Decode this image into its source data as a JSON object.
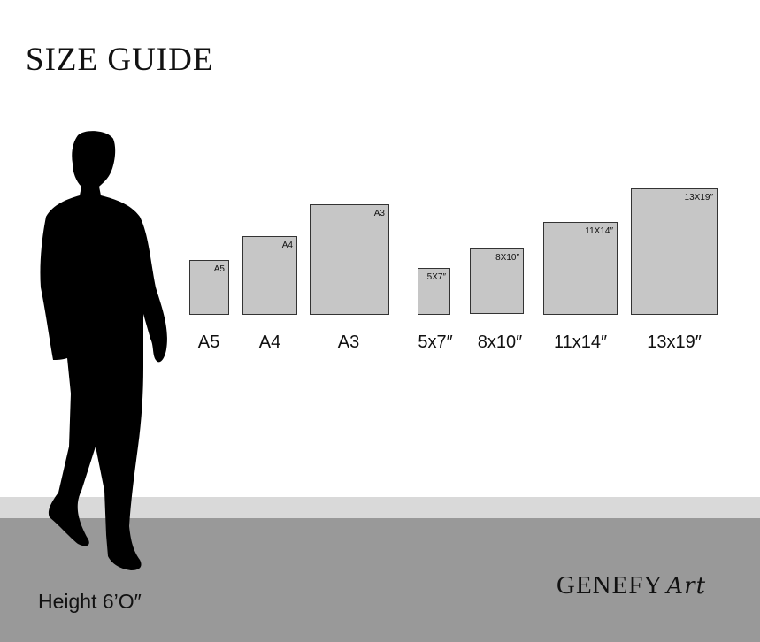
{
  "title": "SIZE GUIDE",
  "sizes": [
    {
      "tag": "A5",
      "label": "A5"
    },
    {
      "tag": "A4",
      "label": "A4"
    },
    {
      "tag": "A3",
      "label": "A3"
    },
    {
      "tag": "5X7″",
      "label": "5x7″"
    },
    {
      "tag": "8X10″",
      "label": "8x10″"
    },
    {
      "tag": "11X14″",
      "label": "11x14″"
    },
    {
      "tag": "13X19″",
      "label": "13x19″"
    }
  ],
  "height_label": "Height 6’O″",
  "brand": {
    "name": "GENEFY",
    "script": "Art"
  },
  "colors": {
    "frame_fill": "#c6c6c6",
    "floor_light": "#d9d9d9",
    "floor_dark": "#999999"
  }
}
